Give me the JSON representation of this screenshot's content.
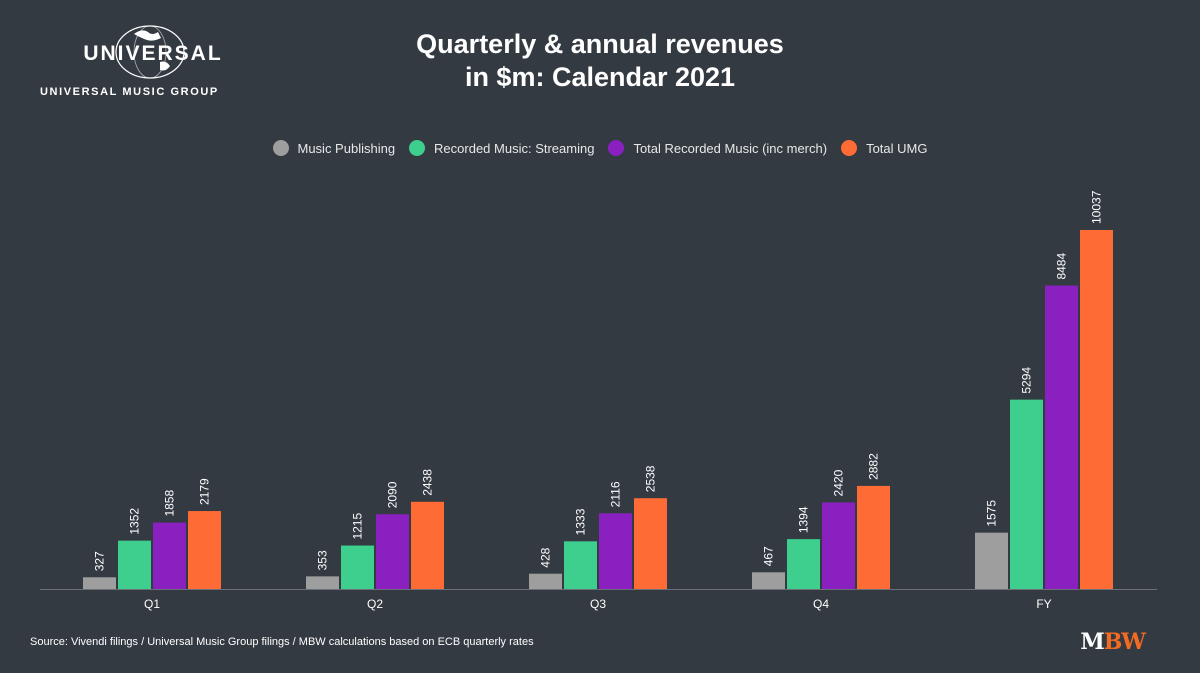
{
  "logo": {
    "brand": "UNIVERSAL",
    "sub": "UNIVERSAL MUSIC GROUP"
  },
  "title_line1": "Quarterly & annual revenues",
  "title_line2": "in $m: Calendar 2021",
  "source": "Source: Vivendi filings / Universal Music Group filings / MBW calculations based on ECB quarterly rates",
  "footer_logo": {
    "m": "M",
    "bw": "BW"
  },
  "colors": {
    "background": "#343a42",
    "publishing": "#9e9e9e",
    "streaming": "#3ecf8e",
    "recorded": "#8a20c0",
    "umg": "#ff6b35",
    "axis": "#6b7078"
  },
  "chart_data": {
    "type": "bar",
    "categories": [
      "Q1",
      "Q2",
      "Q3",
      "Q4",
      "FY"
    ],
    "series": [
      {
        "name": "Music Publishing",
        "color": "#9e9e9e",
        "values": [
          327,
          353,
          428,
          467,
          1575
        ]
      },
      {
        "name": "Recorded Music: Streaming",
        "color": "#3ecf8e",
        "values": [
          1352,
          1215,
          1333,
          1394,
          5294
        ]
      },
      {
        "name": "Total Recorded Music (inc merch)",
        "color": "#8a20c0",
        "values": [
          1858,
          2090,
          2116,
          2420,
          8484
        ]
      },
      {
        "name": "Total UMG",
        "color": "#ff6b35",
        "values": [
          2179,
          2438,
          2538,
          2882,
          10037
        ]
      }
    ],
    "ylim": [
      0,
      10037
    ],
    "data_labels": true,
    "legend_position": "top-center",
    "grid": false
  }
}
